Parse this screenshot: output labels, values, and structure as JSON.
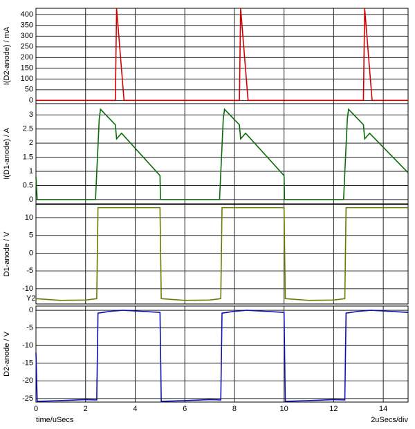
{
  "chart_data": [
    {
      "type": "line",
      "y_label": "I(D2-anode) / mA",
      "x": [
        0,
        3.2,
        3.25,
        3.55,
        8.2,
        8.25,
        8.55,
        13.2,
        13.25,
        13.55,
        15
      ],
      "series": [
        {
          "color": "#d40000",
          "values": [
            0,
            0,
            430,
            0,
            0,
            430,
            0,
            0,
            430,
            0,
            0
          ]
        }
      ],
      "xlim": [
        0,
        15
      ],
      "xticks": [
        0,
        2,
        4,
        6,
        8,
        10,
        12,
        14
      ],
      "ylim": [
        -15,
        430
      ],
      "yticks": [
        0,
        50,
        100,
        150,
        200,
        250,
        300,
        350,
        400
      ],
      "grid": true
    },
    {
      "type": "line",
      "y_label": "I(D1-anode) / A",
      "x": [
        0,
        0.05,
        2.4,
        2.55,
        2.6,
        3.2,
        3.25,
        3.45,
        5.0,
        5.02,
        7.4,
        7.55,
        7.6,
        8.2,
        8.25,
        8.45,
        10.0,
        10.02,
        12.4,
        12.55,
        12.6,
        13.2,
        13.25,
        13.45,
        15
      ],
      "series": [
        {
          "color": "#0a6b0a",
          "values": [
            0.8,
            0,
            0,
            2.85,
            3.2,
            2.65,
            2.15,
            2.35,
            0.85,
            0,
            0,
            2.85,
            3.2,
            2.65,
            2.15,
            2.35,
            0.85,
            0,
            0,
            2.85,
            3.2,
            2.65,
            2.15,
            2.35,
            0.95
          ]
        }
      ],
      "xlim": [
        0,
        15
      ],
      "xticks": [
        0,
        2,
        4,
        6,
        8,
        10,
        12,
        14
      ],
      "ylim": [
        -0.15,
        3.4
      ],
      "yticks": [
        0,
        0.5,
        1,
        1.5,
        2,
        2.5,
        3
      ],
      "grid": true
    },
    {
      "type": "line",
      "y_label": "D1-anode / V",
      "annotation": "Y2",
      "x": [
        0,
        1,
        2,
        2.45,
        2.5,
        5,
        5.05,
        6,
        7,
        7.45,
        7.5,
        10,
        10.05,
        11,
        12,
        12.45,
        12.5,
        15
      ],
      "series": [
        {
          "color": "#6b7a00",
          "values": [
            -12.8,
            -13.3,
            -13.2,
            -12.8,
            12.8,
            12.8,
            -12.8,
            -13.3,
            -13.2,
            -12.8,
            12.8,
            12.8,
            -12.8,
            -13.3,
            -13.2,
            -12.8,
            12.8,
            12.8
          ]
        }
      ],
      "xlim": [
        0,
        15
      ],
      "xticks": [
        0,
        2,
        4,
        6,
        8,
        10,
        12,
        14
      ],
      "ylim": [
        -14.3,
        13.7
      ],
      "yticks": [
        -10,
        -5,
        0,
        5,
        10
      ],
      "grid": true
    },
    {
      "type": "line",
      "y_label": "D2-anode / V",
      "x_label": "time/uSecs",
      "x_scale_label": "2uSecs/div",
      "x": [
        0,
        0.05,
        1,
        2,
        2.45,
        2.5,
        3,
        3.5,
        4.5,
        5,
        5.05,
        6,
        7,
        7.45,
        7.5,
        8,
        8.5,
        9.5,
        10,
        10.05,
        11,
        12,
        12.45,
        12.5,
        13,
        13.5,
        14.5,
        15
      ],
      "series": [
        {
          "color": "#1010b0",
          "values": [
            -12,
            -25.8,
            -25.6,
            -25.3,
            -25.4,
            -0.8,
            -0.3,
            0,
            -0.4,
            -0.6,
            -25.8,
            -25.6,
            -25.3,
            -25.4,
            -0.8,
            -0.3,
            0,
            -0.4,
            -0.6,
            -25.8,
            -25.6,
            -25.3,
            -25.4,
            -0.8,
            -0.3,
            0,
            -0.4,
            -0.6
          ]
        }
      ],
      "xlim": [
        0,
        15
      ],
      "xticks": [
        0,
        2,
        4,
        6,
        8,
        10,
        12,
        14
      ],
      "ylim": [
        -26,
        1.2
      ],
      "yticks": [
        0,
        -5,
        -10,
        -15,
        -20,
        -25
      ],
      "grid": true
    }
  ]
}
